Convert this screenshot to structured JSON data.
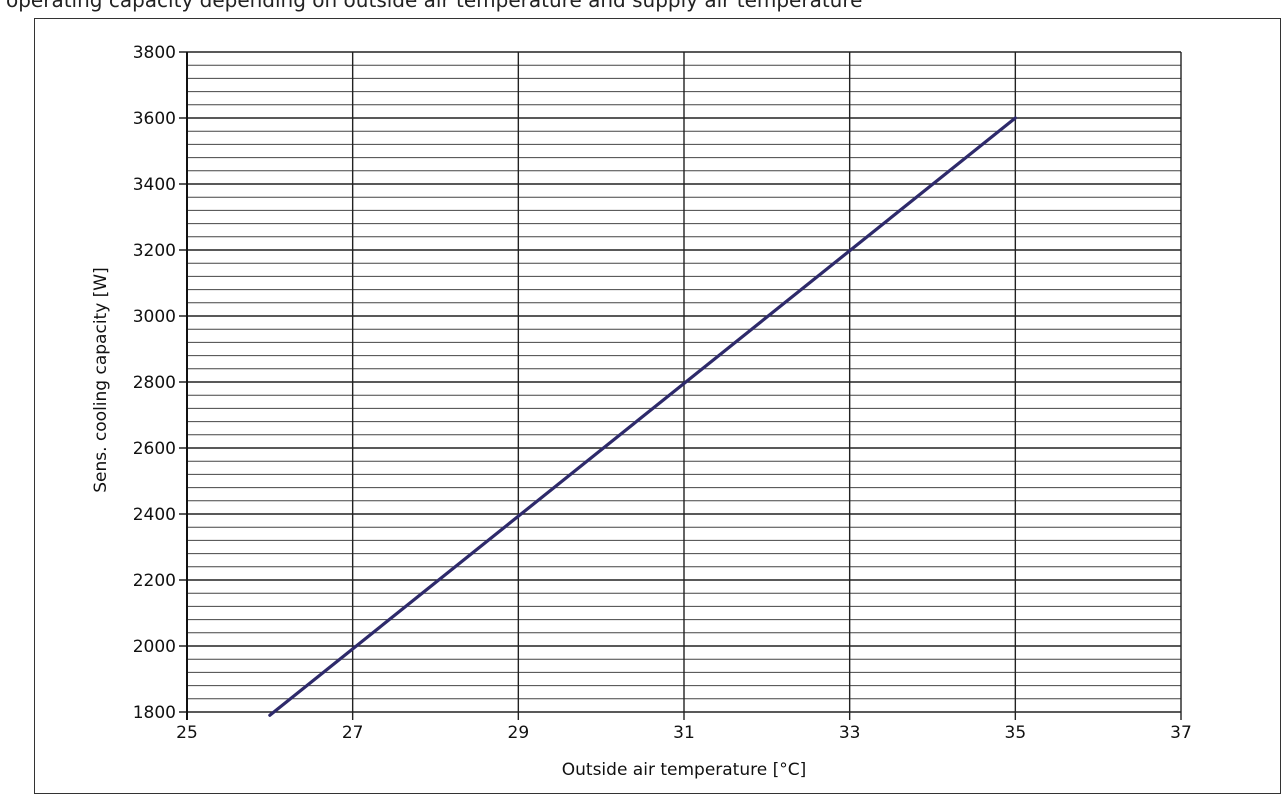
{
  "header": {
    "cut_text": "operating capacity depending on outside air temperature and supply air temperature"
  },
  "chart_data": {
    "type": "line",
    "title": "",
    "xlabel": "Outside air temperature [°C]",
    "ylabel": "Sens. cooling capacity  [W]",
    "xlim": [
      25,
      37
    ],
    "ylim": [
      1800,
      3800
    ],
    "x_ticks": [
      25,
      27,
      29,
      31,
      33,
      35,
      37
    ],
    "y_ticks": [
      1800,
      2000,
      2200,
      2400,
      2600,
      2800,
      3000,
      3200,
      3400,
      3600,
      3800
    ],
    "y_minor_step": 40,
    "grid": true,
    "colors": {
      "line": "#2e2a6b",
      "grid_major": "#222222",
      "grid_minor": "#444444"
    },
    "series": [
      {
        "x": [
          26,
          35
        ],
        "y": [
          1790,
          3600
        ]
      }
    ]
  }
}
